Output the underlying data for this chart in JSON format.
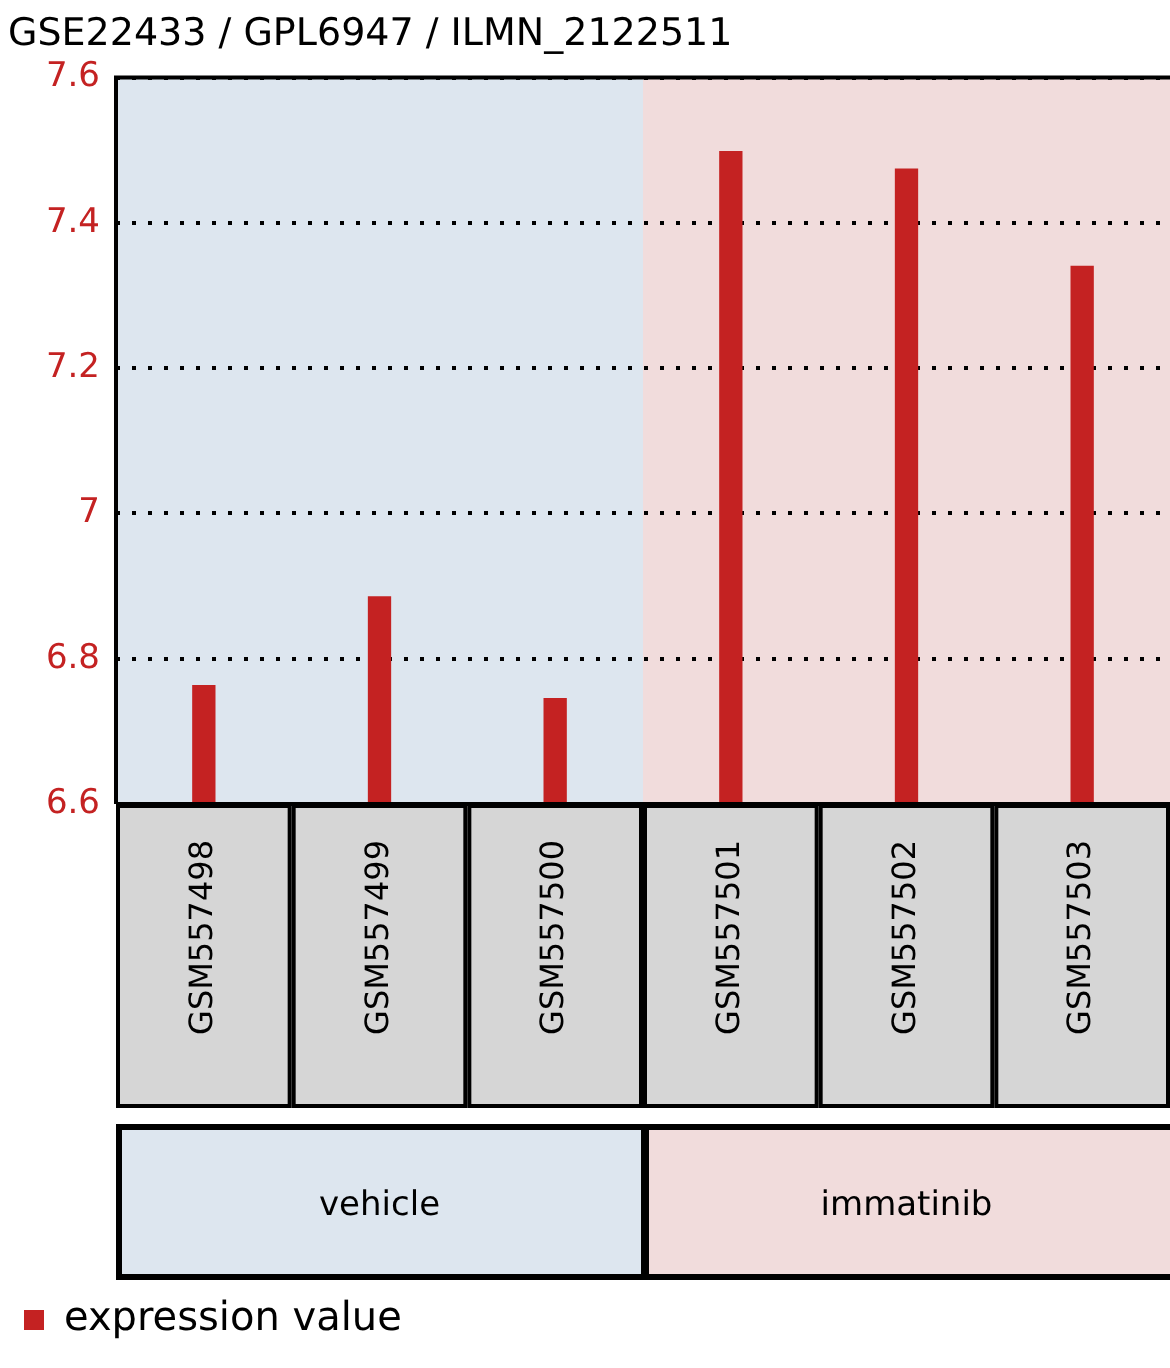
{
  "chart_data": {
    "type": "bar",
    "title": "GSE22433 / GPL6947 / ILMN_2122511",
    "categories": [
      "GSM557498",
      "GSM557499",
      "GSM557500",
      "GSM557501",
      "GSM557502",
      "GSM557503"
    ],
    "series": [
      {
        "name": "expression value",
        "color": "#c42222",
        "values": [
          6.763,
          6.885,
          6.745,
          7.498,
          7.474,
          7.34
        ]
      }
    ],
    "ylim": [
      6.6,
      7.6
    ],
    "yticks": [
      6.6,
      6.8,
      7.2,
      7.4,
      7.6,
      {
        "value": 7,
        "label": "7"
      }
    ],
    "bands": [
      {
        "axis": "x",
        "from": "GSM557498",
        "to": "GSM557500",
        "color": "#dde6ef"
      },
      {
        "axis": "x",
        "from": "GSM557501",
        "to": "GSM557503",
        "color": "#f1dcdc"
      }
    ],
    "annotations": [
      "vehicle",
      "immatinib"
    ],
    "grid": "y",
    "legend": "bottom"
  }
}
